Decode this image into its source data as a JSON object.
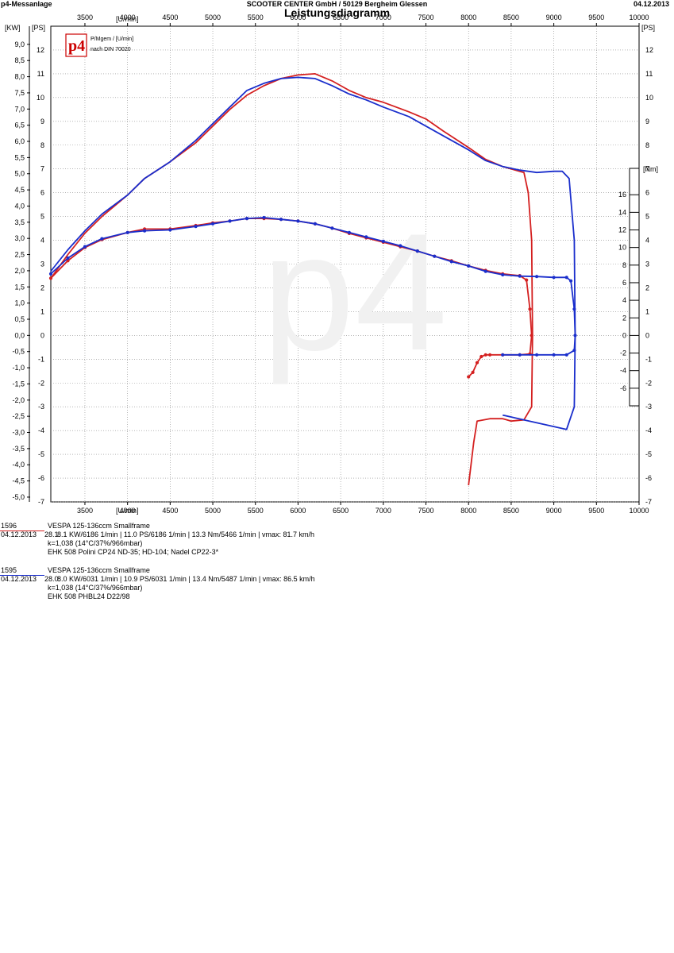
{
  "header": {
    "left": "p4-Messanlage",
    "center": "SCOOTER CENTER GmbH / 50129 Bergheim Glessen",
    "right": "04.12.2013",
    "title": "Leistungsdiagramm"
  },
  "legend_box": {
    "logo": "p4",
    "line1": "P/Mgem / [U/min]",
    "line2": "nach DIN 70020"
  },
  "axis_labels": {
    "x_unit": "[U/min]",
    "y_left_kw": "[KW]",
    "y_left_ps": "[PS]",
    "y_right_ps": "[PS]",
    "y_right_nm": "[Nm]"
  },
  "colors": {
    "run_1596": "#d42020",
    "run_1595": "#1a2ecc",
    "grid": "#888888"
  },
  "runs": [
    {
      "id": "1596",
      "date": "04.12.2013",
      "time": "28.1.",
      "line1": "VESPA 125-136ccm Smallframe",
      "line2": "8.1 KW/6186 1/min  |  11.0 PS/6186 1/min  |  13.3 Nm/5466 1/min  |  vmax: 81.7 km/h",
      "line3": "k=1,038 (14°C/37%/966mbar)",
      "line4": "EHK 508 Polini CP24 ND-35; HD-104; Nadel CP22-3*"
    },
    {
      "id": "1595",
      "date": "04.12.2013",
      "time": "28.0.",
      "line1": "VESPA 125-136ccm Smallframe",
      "line2": "8.0 KW/6031 1/min  |  10.9 PS/6031 1/min  |  13.4 Nm/5487 1/min  |  vmax: 86.5 km/h",
      "line3": "k=1,038 (14°C/37%/966mbar)",
      "line4": "EHK 508 PHBL24 D22/98"
    }
  ],
  "chart_data": {
    "type": "line",
    "title": "Leistungsdiagramm",
    "xlabel": "[U/min]",
    "ylabel": "[PS]",
    "xlim": [
      3100,
      10000
    ],
    "x_ticks": [
      3500,
      4000,
      4500,
      5000,
      5500,
      6000,
      6500,
      7000,
      7500,
      8000,
      8500,
      9000,
      9500,
      10000
    ],
    "ylim_ps": [
      -7,
      13
    ],
    "ps_ticks": [
      -7,
      -6,
      -5,
      -4,
      -3,
      -2,
      -1,
      0,
      1,
      2,
      3,
      4,
      5,
      6,
      7,
      8,
      9,
      10,
      11,
      12
    ],
    "kw_ticks": [
      "-5,0",
      "-4,5",
      "-4,0",
      "-3,5",
      "-3,0",
      "-2,5",
      "-2,0",
      "-1,5",
      "-1,0",
      "-0,5",
      "0,0",
      "0,5",
      "1,0",
      "1,5",
      "2,0",
      "2,5",
      "3,0",
      "3,5",
      "4,0",
      "4,5",
      "5,0",
      "5,5",
      "6,0",
      "6,5",
      "7,0",
      "7,5",
      "8,0",
      "8,5",
      "9,0"
    ],
    "nm_ticks": [
      -6,
      -4,
      -2,
      0,
      2,
      4,
      6,
      8,
      10,
      12,
      14,
      16
    ],
    "ylim_nm": [
      -8,
      19
    ],
    "grid": true,
    "series": [
      {
        "name": "1596",
        "kind": "power_ps",
        "points": [
          [
            3100,
            2.4
          ],
          [
            3300,
            3.4
          ],
          [
            3500,
            4.3
          ],
          [
            3700,
            5.0
          ],
          [
            4000,
            5.9
          ],
          [
            4200,
            6.6
          ],
          [
            4500,
            7.3
          ],
          [
            4800,
            8.1
          ],
          [
            5000,
            8.8
          ],
          [
            5200,
            9.5
          ],
          [
            5400,
            10.1
          ],
          [
            5600,
            10.5
          ],
          [
            5800,
            10.8
          ],
          [
            6000,
            10.95
          ],
          [
            6200,
            11.0
          ],
          [
            6400,
            10.7
          ],
          [
            6600,
            10.3
          ],
          [
            6800,
            10.0
          ],
          [
            7000,
            9.8
          ],
          [
            7300,
            9.4
          ],
          [
            7500,
            9.1
          ],
          [
            7700,
            8.6
          ],
          [
            8000,
            7.9
          ],
          [
            8200,
            7.4
          ],
          [
            8400,
            7.1
          ],
          [
            8550,
            6.95
          ],
          [
            8650,
            6.85
          ],
          [
            8700,
            6.0
          ],
          [
            8740,
            4.0
          ],
          [
            8750,
            0.0
          ],
          [
            8740,
            -3.0
          ],
          [
            8650,
            -3.55
          ],
          [
            8500,
            -3.6
          ],
          [
            8400,
            -3.5
          ],
          [
            8250,
            -3.5
          ],
          [
            8100,
            -3.6
          ],
          [
            8060,
            -4.5
          ],
          [
            8000,
            -6.3
          ]
        ]
      },
      {
        "name": "1595",
        "kind": "power_ps",
        "points": [
          [
            3100,
            2.7
          ],
          [
            3300,
            3.6
          ],
          [
            3500,
            4.4
          ],
          [
            3700,
            5.1
          ],
          [
            4000,
            5.9
          ],
          [
            4200,
            6.6
          ],
          [
            4500,
            7.3
          ],
          [
            4800,
            8.2
          ],
          [
            5000,
            8.9
          ],
          [
            5200,
            9.6
          ],
          [
            5400,
            10.3
          ],
          [
            5600,
            10.6
          ],
          [
            5800,
            10.8
          ],
          [
            6000,
            10.85
          ],
          [
            6200,
            10.8
          ],
          [
            6400,
            10.5
          ],
          [
            6600,
            10.15
          ],
          [
            6800,
            9.9
          ],
          [
            7000,
            9.6
          ],
          [
            7300,
            9.2
          ],
          [
            7500,
            8.8
          ],
          [
            7700,
            8.4
          ],
          [
            8000,
            7.8
          ],
          [
            8200,
            7.35
          ],
          [
            8400,
            7.1
          ],
          [
            8600,
            6.95
          ],
          [
            8800,
            6.85
          ],
          [
            9000,
            6.9
          ],
          [
            9100,
            6.9
          ],
          [
            9180,
            6.6
          ],
          [
            9240,
            4.0
          ],
          [
            9250,
            0.0
          ],
          [
            9240,
            -3.0
          ],
          [
            9150,
            -3.95
          ],
          [
            8900,
            -3.75
          ],
          [
            8650,
            -3.55
          ],
          [
            8400,
            -3.35
          ]
        ]
      },
      {
        "name": "1596",
        "kind": "torque_nm",
        "points": [
          [
            3100,
            6.5
          ],
          [
            3300,
            8.5
          ],
          [
            3500,
            10.0
          ],
          [
            3700,
            10.9
          ],
          [
            4000,
            11.7
          ],
          [
            4200,
            12.1
          ],
          [
            4500,
            12.1
          ],
          [
            4800,
            12.5
          ],
          [
            5000,
            12.8
          ],
          [
            5200,
            13.0
          ],
          [
            5400,
            13.3
          ],
          [
            5600,
            13.3
          ],
          [
            5800,
            13.2
          ],
          [
            6000,
            13.0
          ],
          [
            6200,
            12.7
          ],
          [
            6400,
            12.2
          ],
          [
            6600,
            11.6
          ],
          [
            6800,
            11.1
          ],
          [
            7000,
            10.6
          ],
          [
            7200,
            10.1
          ],
          [
            7400,
            9.6
          ],
          [
            7600,
            9.0
          ],
          [
            7800,
            8.5
          ],
          [
            8000,
            7.9
          ],
          [
            8200,
            7.4
          ],
          [
            8400,
            7.0
          ],
          [
            8600,
            6.8
          ],
          [
            8680,
            6.3
          ],
          [
            8720,
            3.0
          ],
          [
            8740,
            0.0
          ],
          [
            8720,
            -2.1
          ],
          [
            8600,
            -2.2
          ],
          [
            8400,
            -2.2
          ],
          [
            8250,
            -2.2
          ],
          [
            8200,
            -2.2
          ],
          [
            8150,
            -2.4
          ],
          [
            8100,
            -3.1
          ],
          [
            8050,
            -4.2
          ],
          [
            8000,
            -4.7
          ]
        ]
      },
      {
        "name": "1595",
        "kind": "torque_nm",
        "points": [
          [
            3100,
            7.0
          ],
          [
            3300,
            8.8
          ],
          [
            3500,
            10.1
          ],
          [
            3700,
            11.0
          ],
          [
            4000,
            11.7
          ],
          [
            4200,
            11.9
          ],
          [
            4500,
            12.0
          ],
          [
            4800,
            12.4
          ],
          [
            5000,
            12.7
          ],
          [
            5200,
            13.0
          ],
          [
            5400,
            13.3
          ],
          [
            5600,
            13.4
          ],
          [
            5800,
            13.2
          ],
          [
            6000,
            13.0
          ],
          [
            6200,
            12.7
          ],
          [
            6400,
            12.2
          ],
          [
            6600,
            11.7
          ],
          [
            6800,
            11.2
          ],
          [
            7000,
            10.7
          ],
          [
            7200,
            10.2
          ],
          [
            7400,
            9.6
          ],
          [
            7600,
            9.0
          ],
          [
            7800,
            8.4
          ],
          [
            8000,
            7.9
          ],
          [
            8200,
            7.3
          ],
          [
            8400,
            6.9
          ],
          [
            8600,
            6.75
          ],
          [
            8800,
            6.7
          ],
          [
            9000,
            6.6
          ],
          [
            9150,
            6.6
          ],
          [
            9200,
            6.2
          ],
          [
            9240,
            3.0
          ],
          [
            9250,
            0.0
          ],
          [
            9240,
            -1.7
          ],
          [
            9150,
            -2.2
          ],
          [
            9000,
            -2.2
          ],
          [
            8800,
            -2.2
          ],
          [
            8600,
            -2.2
          ],
          [
            8400,
            -2.2
          ]
        ]
      }
    ]
  }
}
